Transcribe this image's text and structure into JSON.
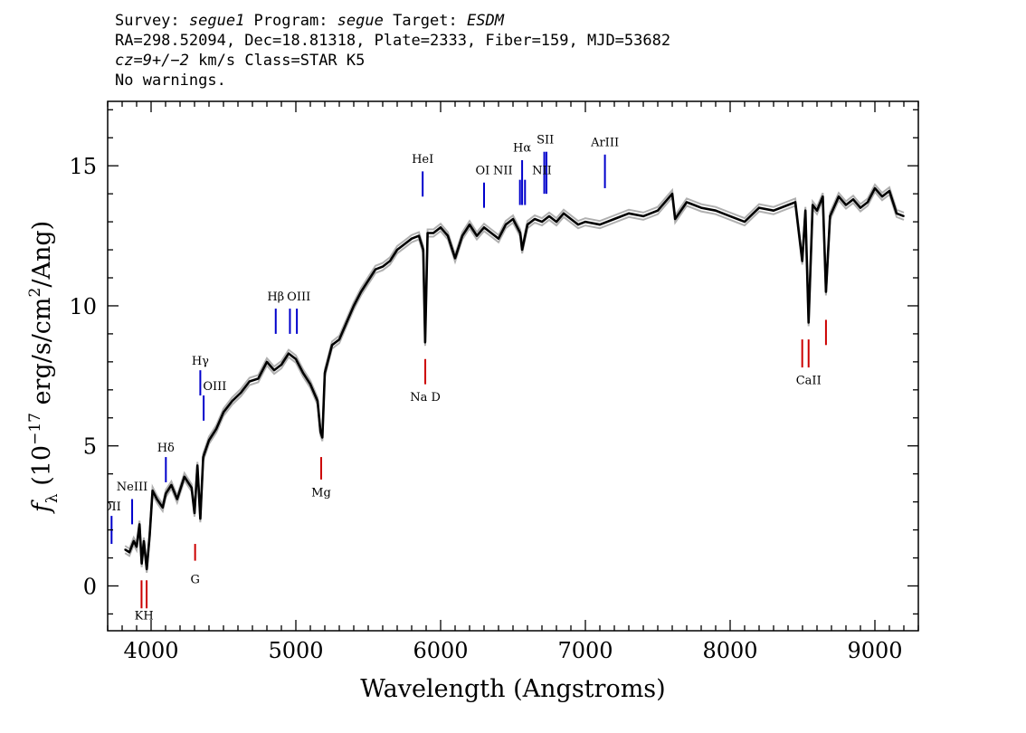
{
  "header": {
    "line1": {
      "survey_label": "Survey: ",
      "survey": "segue1",
      "program_label": " Program: ",
      "program": "segue",
      "target_label": " Target: ",
      "target": "ESDM"
    },
    "line2": "RA=298.52094, Dec=18.81318, Plate=2333, Fiber=159, MJD=53682",
    "line3": {
      "cz_label": "cz",
      "cz_value": "=9+/−2",
      "cz_rest": " km/s Class=STAR K5"
    },
    "line4": "No warnings."
  },
  "chart_data": {
    "type": "line",
    "xlabel": "Wavelength (Angstroms)",
    "ylabel_main": "f",
    "ylabel_sub": "λ",
    "ylabel_tail": " (10",
    "ylabel_exp": "−17",
    "ylabel_unit": " erg/s/cm",
    "ylabel_unit_exp": "2",
    "ylabel_end": "/Ang)",
    "xlim": [
      3700,
      9300
    ],
    "ylim": [
      -1.6,
      17.3
    ],
    "xticks": [
      4000,
      5000,
      6000,
      7000,
      8000,
      9000
    ],
    "yticks": [
      0,
      5,
      10,
      15
    ],
    "series": [
      {
        "color": "#000000",
        "error_color": "#b0b0b0",
        "x": [
          3820,
          3850,
          3880,
          3900,
          3920,
          3935,
          3950,
          3970,
          3990,
          4010,
          4040,
          4080,
          4102,
          4140,
          4180,
          4230,
          4280,
          4300,
          4320,
          4340,
          4360,
          4400,
          4450,
          4500,
          4560,
          4620,
          4680,
          4740,
          4800,
          4850,
          4900,
          4950,
          5000,
          5050,
          5100,
          5150,
          5170,
          5183,
          5200,
          5250,
          5300,
          5350,
          5400,
          5450,
          5500,
          5550,
          5600,
          5650,
          5700,
          5750,
          5800,
          5850,
          5880,
          5893,
          5910,
          5950,
          6000,
          6050,
          6100,
          6150,
          6200,
          6250,
          6300,
          6350,
          6400,
          6450,
          6500,
          6550,
          6563,
          6600,
          6650,
          6700,
          6750,
          6800,
          6850,
          6900,
          6950,
          7000,
          7100,
          7200,
          7300,
          7400,
          7500,
          7600,
          7620,
          7700,
          7800,
          7900,
          8000,
          8100,
          8200,
          8300,
          8400,
          8450,
          8498,
          8520,
          8542,
          8570,
          8600,
          8640,
          8662,
          8690,
          8750,
          8800,
          8850,
          8900,
          8950,
          9000,
          9050,
          9100,
          9150,
          9200
        ],
        "y": [
          1.3,
          1.2,
          1.6,
          1.4,
          2.2,
          0.8,
          1.6,
          0.6,
          1.8,
          3.4,
          3.1,
          2.8,
          3.3,
          3.6,
          3.1,
          3.9,
          3.5,
          2.6,
          4.3,
          2.4,
          4.6,
          5.2,
          5.6,
          6.2,
          6.6,
          6.9,
          7.3,
          7.4,
          8.0,
          7.7,
          7.9,
          8.3,
          8.1,
          7.6,
          7.2,
          6.6,
          5.5,
          5.3,
          7.6,
          8.6,
          8.8,
          9.4,
          10.0,
          10.5,
          10.9,
          11.3,
          11.4,
          11.6,
          12.0,
          12.2,
          12.4,
          12.5,
          12.0,
          8.7,
          12.6,
          12.6,
          12.8,
          12.5,
          11.7,
          12.5,
          12.9,
          12.5,
          12.8,
          12.6,
          12.4,
          12.9,
          13.1,
          12.6,
          12.0,
          12.9,
          13.1,
          13.0,
          13.2,
          13.0,
          13.3,
          13.1,
          12.9,
          13.0,
          12.9,
          13.1,
          13.3,
          13.2,
          13.4,
          14.0,
          13.1,
          13.7,
          13.5,
          13.4,
          13.2,
          13.0,
          13.5,
          13.4,
          13.6,
          13.7,
          11.6,
          13.4,
          9.4,
          13.6,
          13.4,
          13.9,
          10.5,
          13.2,
          13.9,
          13.6,
          13.8,
          13.5,
          13.7,
          14.2,
          13.9,
          14.1,
          13.3,
          13.2
        ]
      }
    ],
    "emission_lines": [
      {
        "name": "OII",
        "x": 3727,
        "y1": 1.5,
        "y2": 2.5
      },
      {
        "name": "NeIII",
        "x": 3869,
        "y1": 2.2,
        "y2": 3.1
      },
      {
        "name": "Hδ",
        "x": 4102,
        "y1": 3.7,
        "y2": 4.6
      },
      {
        "name": "Hγ",
        "x": 4340,
        "y1": 6.8,
        "y2": 7.7
      },
      {
        "name": "OIII",
        "x": 4363,
        "y1": 5.9,
        "y2": 6.8
      },
      {
        "name": "Hβ",
        "x": 4861,
        "y1": 9.0,
        "y2": 9.9
      },
      {
        "name": "OIII",
        "x": 4959,
        "y1": 9.0,
        "y2": 9.9
      },
      {
        "name": "OIII",
        "x": 5007,
        "y1": 9.0,
        "y2": 9.9
      },
      {
        "name": "HeI",
        "x": 5876,
        "y1": 13.9,
        "y2": 14.8
      },
      {
        "name": "OI",
        "x": 6300,
        "y1": 13.5,
        "y2": 14.4
      },
      {
        "name": "NII",
        "x": 6548,
        "y1": 13.6,
        "y2": 14.5
      },
      {
        "name": "Hα",
        "x": 6563,
        "y1": 13.6,
        "y2": 15.2
      },
      {
        "name": "NII",
        "x": 6583,
        "y1": 13.6,
        "y2": 14.5
      },
      {
        "name": "SII",
        "x": 6716,
        "y1": 14.0,
        "y2": 15.5
      },
      {
        "name": "SII",
        "x": 6731,
        "y1": 14.0,
        "y2": 15.5
      },
      {
        "name": "ArIII",
        "x": 7135,
        "y1": 14.2,
        "y2": 15.4
      }
    ],
    "absorption_lines": [
      {
        "name": "K",
        "x": 3934,
        "y1": -0.8,
        "y2": 0.2
      },
      {
        "name": "H",
        "x": 3969,
        "y1": -0.8,
        "y2": 0.2
      },
      {
        "name": "G",
        "x": 4304,
        "y1": 0.9,
        "y2": 1.5
      },
      {
        "name": "Mg",
        "x": 5175,
        "y1": 3.8,
        "y2": 4.6
      },
      {
        "name": "Na D",
        "x": 5894,
        "y1": 7.2,
        "y2": 8.1
      },
      {
        "name": "CaII",
        "x": 8498,
        "y1": 7.8,
        "y2": 8.8
      },
      {
        "name": "CaII",
        "x": 8542,
        "y1": 7.8,
        "y2": 8.8
      },
      {
        "name": "CaII",
        "x": 8662,
        "y1": 8.6,
        "y2": 9.5
      }
    ],
    "emission_labels": [
      {
        "text": "OII",
        "x": 3727,
        "y": 2.7
      },
      {
        "text": "NeIII",
        "x": 3869,
        "y": 3.4
      },
      {
        "text": "Hδ",
        "x": 4102,
        "y": 4.8
      },
      {
        "text": "Hγ",
        "x": 4340,
        "y": 7.9
      },
      {
        "text": "OIII",
        "x": 4440,
        "y": 7.0
      },
      {
        "text": "Hβ",
        "x": 4861,
        "y": 10.2
      },
      {
        "text": "OIII",
        "x": 5020,
        "y": 10.2
      },
      {
        "text": "HeI",
        "x": 5876,
        "y": 15.1
      },
      {
        "text": "OI",
        "x": 6290,
        "y": 14.7
      },
      {
        "text": "NII",
        "x": 6430,
        "y": 14.7
      },
      {
        "text": "Hα",
        "x": 6563,
        "y": 15.5
      },
      {
        "text": "NII",
        "x": 6700,
        "y": 14.7
      },
      {
        "text": "SII",
        "x": 6723,
        "y": 15.8
      },
      {
        "text": "ArIII",
        "x": 7135,
        "y": 15.7
      }
    ],
    "absorption_labels": [
      {
        "text": "KH",
        "x": 3951,
        "y": -1.2
      },
      {
        "text": "G",
        "x": 4304,
        "y": 0.1
      },
      {
        "text": "Mg",
        "x": 5175,
        "y": 3.2
      },
      {
        "text": "Na D",
        "x": 5894,
        "y": 6.6
      },
      {
        "text": "CaII",
        "x": 8542,
        "y": 7.2
      }
    ],
    "emission_color": "#0000cc",
    "absorption_color": "#cc0000"
  }
}
